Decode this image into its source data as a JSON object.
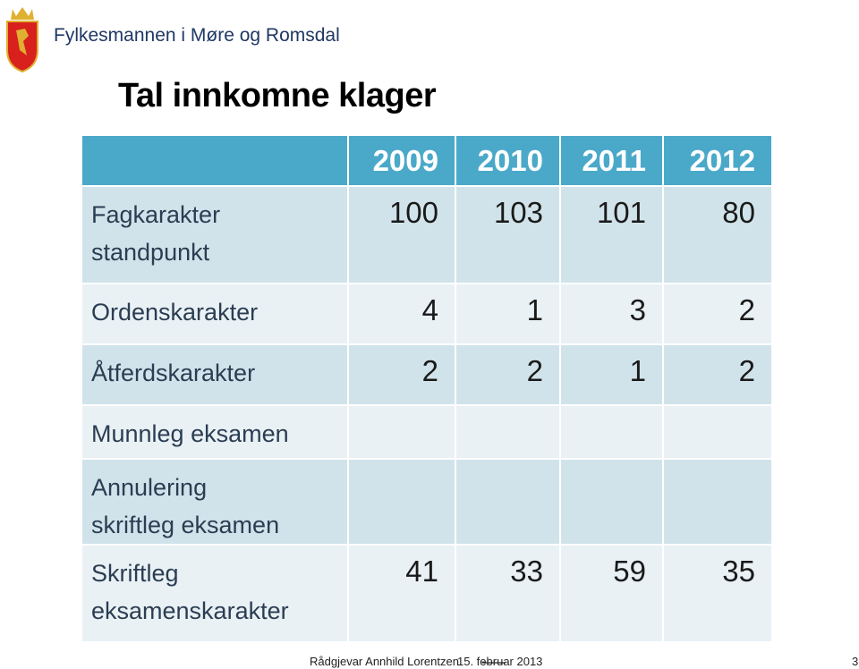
{
  "header": {
    "organization": "Fylkesmannen i Møre og Romsdal"
  },
  "title": "Tal innkomne klager",
  "table": {
    "columns": [
      "2009",
      "2010",
      "2011",
      "2012"
    ],
    "rows": [
      {
        "label": [
          "Fagkarakter",
          "standpunkt"
        ],
        "values": [
          100,
          103,
          101,
          80
        ]
      },
      {
        "label": [
          "Ordenskarakter"
        ],
        "values": [
          4,
          1,
          3,
          2
        ]
      },
      {
        "label": [
          "Åtferdskarakter"
        ],
        "values": [
          2,
          2,
          1,
          2
        ]
      },
      {
        "label": [
          "Munnleg eksamen"
        ],
        "values": [
          null,
          null,
          null,
          null
        ]
      },
      {
        "label": [
          "Annulering",
          "skriftleg eksamen"
        ],
        "values": [
          null,
          null,
          null,
          null
        ]
      },
      {
        "label": [
          "Skriftleg",
          "eksamenskarakter"
        ],
        "values": [
          41,
          33,
          59,
          35
        ]
      }
    ]
  },
  "footer": {
    "author": "Rådgjevar Annhild Lorentzen",
    "date": "15. februar 2013",
    "page": "3"
  }
}
